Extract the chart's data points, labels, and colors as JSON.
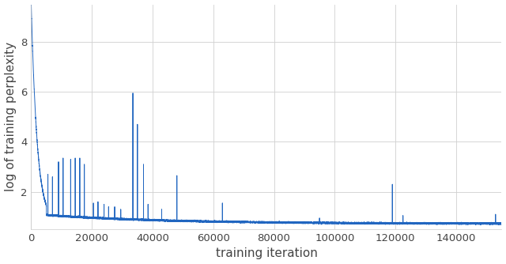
{
  "title": "",
  "xlabel": "training iteration",
  "ylabel": "log of training perplexity",
  "xlim": [
    0,
    155000
  ],
  "ylim": [
    0.5,
    9.5
  ],
  "yticks": [
    2,
    4,
    6,
    8
  ],
  "xticks": [
    0,
    20000,
    40000,
    60000,
    80000,
    100000,
    120000,
    140000
  ],
  "xtick_labels": [
    "0",
    "20000",
    "40000",
    "60000",
    "80000",
    "100000",
    "120000",
    "140000"
  ],
  "line_color": "#2166c0",
  "background_color": "#ffffff",
  "grid_color": "#d0d0d0",
  "total_steps": 155000,
  "base_level": 0.72,
  "initial_value": 9.5,
  "spike_locations": [
    {
      "x": 2000,
      "height": 2.4
    },
    {
      "x": 3000,
      "height": 2.2
    },
    {
      "x": 5500,
      "height": 2.7
    },
    {
      "x": 7000,
      "height": 2.6
    },
    {
      "x": 9000,
      "height": 3.2
    },
    {
      "x": 10500,
      "height": 3.35
    },
    {
      "x": 13000,
      "height": 3.3
    },
    {
      "x": 14500,
      "height": 3.35
    },
    {
      "x": 16000,
      "height": 3.35
    },
    {
      "x": 17500,
      "height": 3.1
    },
    {
      "x": 20500,
      "height": 1.55
    },
    {
      "x": 22000,
      "height": 1.6
    },
    {
      "x": 24000,
      "height": 1.5
    },
    {
      "x": 25500,
      "height": 1.4
    },
    {
      "x": 27500,
      "height": 1.4
    },
    {
      "x": 29500,
      "height": 1.3
    },
    {
      "x": 33500,
      "height": 5.95
    },
    {
      "x": 35000,
      "height": 4.7
    },
    {
      "x": 37000,
      "height": 3.1
    },
    {
      "x": 38500,
      "height": 1.5
    },
    {
      "x": 43000,
      "height": 1.3
    },
    {
      "x": 48000,
      "height": 2.65
    },
    {
      "x": 63000,
      "height": 1.55
    },
    {
      "x": 95000,
      "height": 0.95
    },
    {
      "x": 119000,
      "height": 2.3
    },
    {
      "x": 122500,
      "height": 1.05
    },
    {
      "x": 153000,
      "height": 1.1
    }
  ],
  "font_size": 11
}
